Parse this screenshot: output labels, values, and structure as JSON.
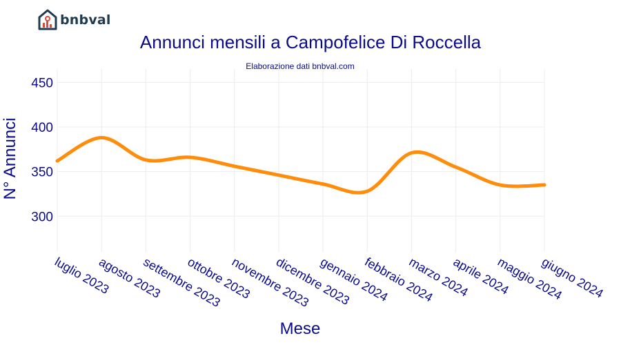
{
  "brand": {
    "name": "bnbval"
  },
  "colors": {
    "line": "#ff8c0a",
    "text": "#0a0a8a",
    "grid": "#ececec",
    "logo": "#1f3b4d",
    "logo_accent": "#e04a3b"
  },
  "chart_data": {
    "type": "line",
    "title": "Annunci mensili a Campofelice Di Roccella",
    "subtitle": "Elaborazione dati bnbval.com",
    "xlabel": "Mese",
    "ylabel": "N° Annunci",
    "categories": [
      "luglio 2023",
      "agosto 2023",
      "settembre 2023",
      "ottobre 2023",
      "novembre 2023",
      "dicembre 2023",
      "gennaio 2024",
      "febbraio 2024",
      "marzo 2024",
      "aprile 2024",
      "maggio 2024",
      "giugno 2024"
    ],
    "series": [
      {
        "values": [
          362,
          388,
          363,
          366,
          356,
          346,
          336,
          328,
          371,
          355,
          335,
          335
        ]
      }
    ],
    "ylim": [
      260,
      465
    ],
    "yticks": [
      300,
      350,
      400,
      450
    ],
    "grid": true,
    "legend": "none"
  }
}
